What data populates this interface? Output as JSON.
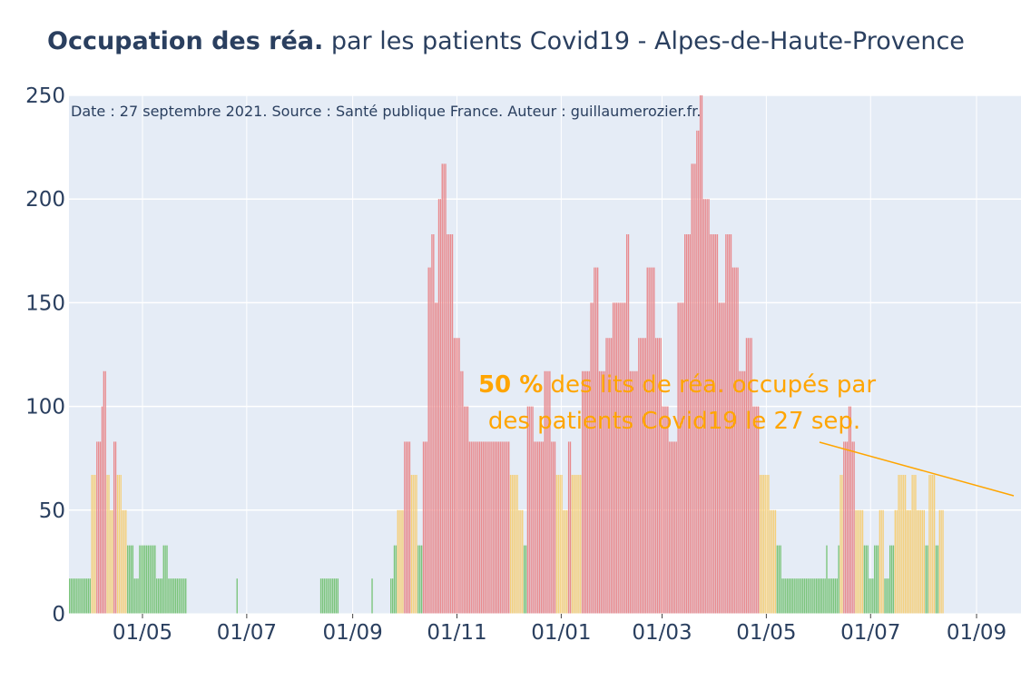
{
  "title": {
    "bold": "Occupation des réa.",
    "rest": " par les patients Covid19 - Alpes-de-Haute-Provence"
  },
  "source_note": "Date : 27 septembre 2021. Source : Santé publique France. Auteur : guillaumerozier.fr.",
  "annotation": {
    "value": "50",
    "pct": "%",
    "text_line1": " des lits de réa. occupés par",
    "text_line2": "des patients Covid19 le 27 sep.",
    "color": "#ffa500"
  },
  "colors": {
    "plot_bg": "#e5ecf6",
    "grid": "#ffffff",
    "green": "#7ac47a",
    "orange": "#f5cf7a",
    "red": "#e88a8e",
    "text": "#2a3f5f"
  },
  "chart_data": {
    "type": "bar",
    "xlabel": "",
    "ylabel": "",
    "ylim": [
      0,
      250
    ],
    "x_range": [
      "2020-03-19",
      "2021-09-27"
    ],
    "y_ticks": [
      0,
      50,
      100,
      150,
      200,
      250
    ],
    "x_ticks": [
      {
        "date": "2020-05-01",
        "label": "01/05"
      },
      {
        "date": "2020-07-01",
        "label": "01/07"
      },
      {
        "date": "2020-09-01",
        "label": "01/09"
      },
      {
        "date": "2020-11-01",
        "label": "01/11"
      },
      {
        "date": "2021-01-01",
        "label": "01/01"
      },
      {
        "date": "2021-03-01",
        "label": "01/03"
      },
      {
        "date": "2021-05-01",
        "label": "01/05"
      },
      {
        "date": "2021-07-01",
        "label": "01/07"
      },
      {
        "date": "2021-09-01",
        "label": "01/09"
      }
    ],
    "series_keypoints": [
      [
        "2020-03-19",
        17
      ],
      [
        "2020-03-30",
        17
      ],
      [
        "2020-04-01",
        67
      ],
      [
        "2020-04-04",
        83
      ],
      [
        "2020-04-07",
        100
      ],
      [
        "2020-04-08",
        117
      ],
      [
        "2020-04-10",
        67
      ],
      [
        "2020-04-12",
        50
      ],
      [
        "2020-04-14",
        83
      ],
      [
        "2020-04-16",
        67
      ],
      [
        "2020-04-19",
        50
      ],
      [
        "2020-04-22",
        33
      ],
      [
        "2020-04-26",
        17
      ],
      [
        "2020-04-29",
        33
      ],
      [
        "2020-05-09",
        17
      ],
      [
        "2020-05-13",
        33
      ],
      [
        "2020-05-16",
        17
      ],
      [
        "2020-05-25",
        17
      ],
      [
        "2020-05-27",
        0
      ],
      [
        "2020-06-24",
        0
      ],
      [
        "2020-06-25",
        17
      ],
      [
        "2020-06-26",
        0
      ],
      [
        "2020-08-12",
        0
      ],
      [
        "2020-08-13",
        17
      ],
      [
        "2020-08-23",
        17
      ],
      [
        "2020-08-24",
        0
      ],
      [
        "2020-09-11",
        0
      ],
      [
        "2020-09-12",
        17
      ],
      [
        "2020-09-13",
        0
      ],
      [
        "2020-09-22",
        0
      ],
      [
        "2020-09-23",
        17
      ],
      [
        "2020-09-25",
        33
      ],
      [
        "2020-09-27",
        50
      ],
      [
        "2020-10-01",
        83
      ],
      [
        "2020-10-05",
        67
      ],
      [
        "2020-10-09",
        33
      ],
      [
        "2020-10-12",
        83
      ],
      [
        "2020-10-15",
        167
      ],
      [
        "2020-10-17",
        183
      ],
      [
        "2020-10-19",
        150
      ],
      [
        "2020-10-21",
        200
      ],
      [
        "2020-10-23",
        217
      ],
      [
        "2020-10-26",
        183
      ],
      [
        "2020-10-30",
        133
      ],
      [
        "2020-11-03",
        117
      ],
      [
        "2020-11-05",
        100
      ],
      [
        "2020-11-08",
        83
      ],
      [
        "2020-11-30",
        83
      ],
      [
        "2020-12-02",
        67
      ],
      [
        "2020-12-07",
        50
      ],
      [
        "2020-12-10",
        33
      ],
      [
        "2020-12-12",
        100
      ],
      [
        "2020-12-16",
        83
      ],
      [
        "2020-12-22",
        117
      ],
      [
        "2020-12-26",
        83
      ],
      [
        "2020-12-29",
        67
      ],
      [
        "2021-01-02",
        50
      ],
      [
        "2021-01-05",
        83
      ],
      [
        "2021-01-07",
        67
      ],
      [
        "2021-01-13",
        117
      ],
      [
        "2021-01-18",
        150
      ],
      [
        "2021-01-20",
        167
      ],
      [
        "2021-01-23",
        117
      ],
      [
        "2021-01-27",
        133
      ],
      [
        "2021-01-31",
        150
      ],
      [
        "2021-02-05",
        150
      ],
      [
        "2021-02-08",
        183
      ],
      [
        "2021-02-10",
        117
      ],
      [
        "2021-02-15",
        133
      ],
      [
        "2021-02-20",
        167
      ],
      [
        "2021-02-25",
        133
      ],
      [
        "2021-03-01",
        100
      ],
      [
        "2021-03-05",
        83
      ],
      [
        "2021-03-10",
        150
      ],
      [
        "2021-03-14",
        183
      ],
      [
        "2021-03-18",
        217
      ],
      [
        "2021-03-21",
        233
      ],
      [
        "2021-03-23",
        250
      ],
      [
        "2021-03-25",
        200
      ],
      [
        "2021-03-29",
        183
      ],
      [
        "2021-04-03",
        150
      ],
      [
        "2021-04-07",
        183
      ],
      [
        "2021-04-11",
        167
      ],
      [
        "2021-04-15",
        117
      ],
      [
        "2021-04-19",
        133
      ],
      [
        "2021-04-23",
        100
      ],
      [
        "2021-04-27",
        67
      ],
      [
        "2021-05-03",
        50
      ],
      [
        "2021-05-07",
        33
      ],
      [
        "2021-05-10",
        17
      ],
      [
        "2021-06-04",
        17
      ],
      [
        "2021-06-05",
        33
      ],
      [
        "2021-06-06",
        17
      ],
      [
        "2021-06-10",
        17
      ],
      [
        "2021-06-12",
        33
      ],
      [
        "2021-06-13",
        67
      ],
      [
        "2021-06-15",
        83
      ],
      [
        "2021-06-18",
        100
      ],
      [
        "2021-06-20",
        83
      ],
      [
        "2021-06-22",
        50
      ],
      [
        "2021-06-27",
        33
      ],
      [
        "2021-06-30",
        17
      ],
      [
        "2021-07-03",
        33
      ],
      [
        "2021-07-06",
        50
      ],
      [
        "2021-07-09",
        17
      ],
      [
        "2021-07-12",
        33
      ],
      [
        "2021-07-15",
        50
      ],
      [
        "2021-07-17",
        67
      ],
      [
        "2021-07-22",
        50
      ],
      [
        "2021-07-25",
        67
      ],
      [
        "2021-07-28",
        50
      ],
      [
        "2021-08-02",
        33
      ],
      [
        "2021-08-04",
        67
      ],
      [
        "2021-08-08",
        33
      ],
      [
        "2021-08-10",
        50
      ],
      [
        "2021-08-12",
        50
      ]
    ],
    "time_mapping": "keypoint dates as printed; series spans 2020-03-19 to 2021-09-27",
    "color_rule": {
      "green_below": 50,
      "red_from": 75
    }
  }
}
